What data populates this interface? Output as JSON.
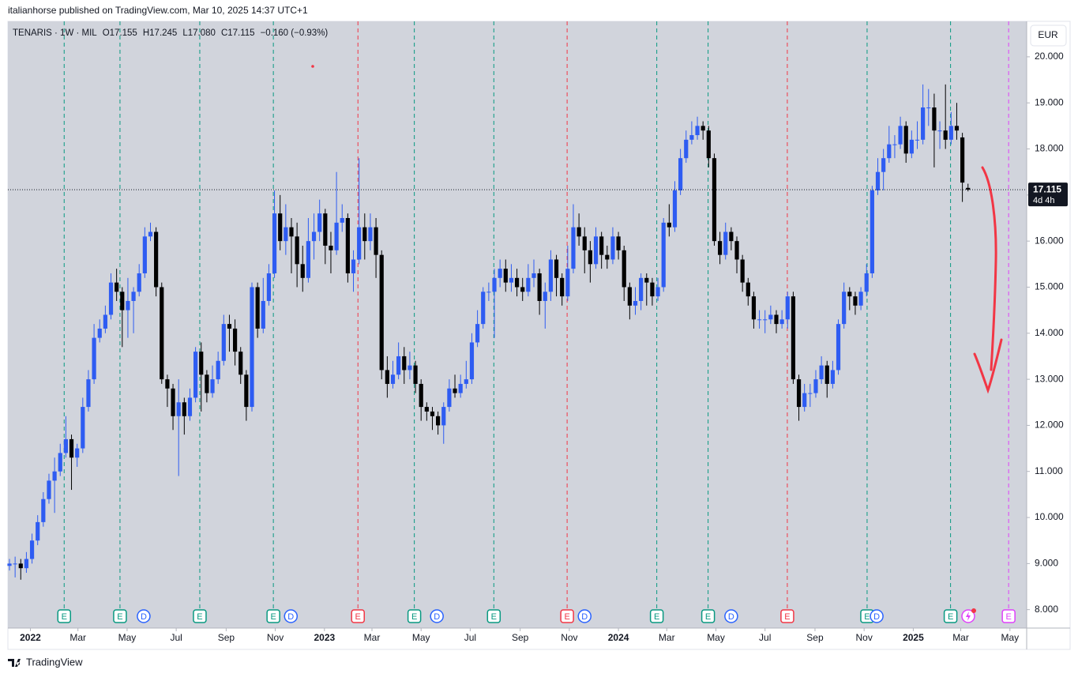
{
  "header": "italianhorse published on TradingView.com, Mar 10, 2025 14:37 UTC+1",
  "footer": "TradingView",
  "chart_data": {
    "type": "candlestick",
    "legend": {
      "symbol": "TENARIS · 1W · MIL",
      "items": [
        {
          "key": "O",
          "value": "17.155"
        },
        {
          "key": "H",
          "value": "17.245"
        },
        {
          "key": "L",
          "value": "17.080"
        },
        {
          "key": "C",
          "value": "17.115"
        }
      ],
      "change": "−0.160 (−0.93%)"
    },
    "currency": "EUR",
    "last_price_label": "17.115",
    "countdown": "4d 4h",
    "up_color": "#2e5cf2",
    "down_color": "#000000",
    "grid": false,
    "x": [
      0,
      1,
      2,
      3,
      4,
      5,
      6,
      7,
      8,
      9,
      10,
      11,
      12,
      13,
      14,
      15,
      16,
      17,
      18,
      19,
      20,
      21,
      22,
      23,
      24,
      25,
      26,
      27,
      28,
      29,
      30,
      31,
      32,
      33,
      34,
      35,
      36,
      37,
      38,
      39,
      40,
      41,
      42,
      43,
      44,
      45,
      46,
      47,
      48,
      49,
      50,
      51,
      52,
      53,
      54,
      55,
      56,
      57,
      58,
      59,
      60,
      61,
      62,
      63,
      64,
      65,
      66,
      67,
      68,
      69,
      70,
      71,
      72,
      73,
      74,
      75,
      76,
      77,
      78,
      79,
      80,
      81,
      82,
      83,
      84,
      85,
      86,
      87,
      88,
      89,
      90,
      91,
      92,
      93,
      94,
      95,
      96,
      97,
      98,
      99,
      100,
      101,
      102,
      103,
      104,
      105,
      106,
      107,
      108,
      109,
      110,
      111,
      112,
      113,
      114,
      115,
      116,
      117,
      118,
      119,
      120,
      121,
      122,
      123,
      124,
      125,
      126,
      127,
      128,
      129,
      130,
      131,
      132,
      133,
      134,
      135,
      136,
      137,
      138,
      139,
      140,
      141,
      142,
      143,
      144,
      145,
      146,
      147,
      148,
      149,
      150,
      151,
      152,
      153,
      154,
      155,
      156,
      157,
      158,
      159,
      160,
      161,
      162,
      163,
      164,
      165,
      166,
      167,
      168,
      169,
      170
    ],
    "open": [
      8.95,
      9.0,
      9.0,
      8.9,
      9.1,
      9.5,
      9.9,
      10.4,
      10.8,
      11.0,
      11.4,
      11.7,
      11.3,
      11.5,
      12.4,
      13.0,
      13.9,
      14.1,
      14.4,
      15.1,
      14.9,
      14.5,
      14.7,
      14.9,
      15.3,
      16.1,
      16.2,
      15.0,
      13.0,
      12.8,
      12.2,
      12.5,
      12.2,
      12.6,
      13.6,
      13.1,
      12.7,
      13.0,
      13.4,
      14.2,
      14.1,
      13.6,
      13.1,
      12.4,
      15.0,
      14.1,
      14.7,
      15.3,
      16.6,
      16.0,
      16.3,
      16.1,
      15.5,
      15.2,
      16.0,
      16.2,
      16.6,
      15.9,
      15.8,
      16.4,
      16.5,
      15.3,
      15.6,
      16.3,
      16.0,
      16.3,
      15.7,
      13.2,
      12.9,
      13.1,
      13.5,
      13.2,
      13.3,
      12.9,
      12.4,
      12.3,
      12.2,
      12.0,
      12.4,
      12.8,
      12.7,
      12.9,
      13.0,
      13.8,
      14.2,
      14.9,
      14.9,
      15.2,
      15.4,
      15.1,
      15.2,
      15.0,
      14.9,
      15.2,
      15.3,
      14.7,
      14.9,
      15.6,
      15.2,
      14.8,
      15.4,
      16.3,
      16.1,
      15.8,
      15.5,
      16.1,
      15.7,
      15.6,
      16.1,
      15.8,
      15.0,
      14.6,
      14.7,
      15.2,
      15.1,
      14.8,
      15.0,
      16.4,
      16.3,
      17.1,
      17.8,
      18.2,
      18.3,
      18.5,
      18.4,
      17.8,
      16.0,
      15.7,
      16.2,
      16.0,
      15.6,
      15.1,
      14.8,
      14.3,
      14.3,
      14.3,
      14.4,
      14.2,
      14.3,
      14.8,
      13.0,
      12.4,
      12.7,
      12.7,
      13.0,
      13.3,
      12.9,
      13.2,
      14.2,
      14.9,
      14.8,
      14.6,
      14.9,
      15.3,
      17.1,
      17.5,
      17.8,
      18.1,
      18.1,
      18.5,
      17.9,
      18.2,
      18.2,
      18.9,
      18.9,
      18.4,
      18.4,
      18.2,
      18.5,
      18.25,
      17.155
    ],
    "high": [
      9.1,
      9.15,
      9.1,
      9.25,
      9.65,
      10.05,
      10.55,
      10.95,
      11.3,
      11.6,
      12.2,
      11.8,
      11.6,
      12.6,
      13.2,
      14.2,
      14.3,
      14.6,
      15.3,
      15.4,
      15.0,
      15.2,
      15.0,
      15.5,
      16.3,
      16.4,
      16.3,
      15.1,
      13.1,
      12.9,
      13.0,
      12.6,
      12.8,
      13.7,
      13.8,
      13.2,
      13.3,
      13.6,
      14.4,
      14.4,
      14.3,
      13.7,
      13.2,
      15.1,
      15.1,
      15.2,
      15.5,
      17.1,
      17.0,
      16.8,
      16.5,
      16.4,
      15.9,
      16.5,
      16.6,
      16.9,
      16.7,
      16.2,
      17.5,
      16.8,
      16.6,
      15.8,
      17.8,
      16.6,
      16.6,
      16.5,
      15.8,
      13.5,
      13.4,
      13.8,
      13.7,
      13.6,
      13.4,
      13.0,
      12.5,
      12.4,
      12.3,
      12.5,
      13.0,
      13.1,
      13.1,
      13.4,
      14.0,
      14.5,
      15.0,
      15.1,
      15.4,
      15.6,
      15.6,
      15.5,
      15.4,
      15.2,
      15.5,
      15.6,
      15.4,
      15.1,
      15.8,
      15.7,
      15.3,
      15.9,
      16.8,
      16.6,
      16.3,
      16.0,
      16.3,
      16.2,
      15.9,
      16.3,
      16.2,
      15.9,
      15.1,
      15.0,
      15.3,
      15.3,
      15.2,
      15.2,
      16.5,
      16.8,
      17.3,
      18.0,
      18.4,
      18.6,
      18.7,
      18.6,
      18.5,
      17.9,
      16.2,
      16.4,
      16.3,
      16.1,
      15.7,
      15.2,
      14.9,
      14.5,
      14.5,
      14.6,
      14.5,
      14.5,
      14.9,
      14.9,
      13.1,
      12.9,
      12.9,
      13.2,
      13.5,
      13.4,
      13.4,
      14.3,
      15.1,
      15.0,
      14.9,
      15.0,
      15.5,
      17.2,
      17.8,
      18.0,
      18.5,
      18.3,
      18.7,
      18.6,
      18.4,
      18.6,
      19.4,
      19.3,
      19.2,
      18.6,
      19.4,
      18.8,
      19.0,
      18.35,
      17.245
    ],
    "low": [
      8.85,
      8.7,
      8.65,
      8.8,
      9.0,
      9.4,
      9.8,
      10.3,
      10.1,
      10.9,
      11.3,
      10.6,
      11.1,
      11.4,
      12.3,
      12.9,
      13.8,
      14.0,
      14.3,
      14.7,
      13.7,
      13.9,
      14.0,
      14.8,
      15.2,
      16.0,
      14.8,
      12.9,
      12.4,
      11.9,
      10.9,
      11.8,
      12.1,
      12.5,
      12.3,
      12.5,
      12.6,
      12.9,
      13.3,
      13.6,
      13.3,
      12.9,
      12.1,
      12.3,
      13.9,
      14.0,
      14.6,
      15.2,
      15.8,
      15.7,
      15.3,
      15.0,
      14.9,
      15.1,
      15.6,
      16.0,
      15.5,
      15.3,
      15.7,
      16.2,
      15.1,
      14.9,
      15.5,
      15.6,
      15.8,
      15.2,
      13.0,
      12.6,
      12.8,
      13.0,
      12.9,
      13.0,
      12.7,
      12.1,
      12.1,
      11.9,
      11.8,
      11.6,
      12.3,
      12.6,
      12.6,
      12.8,
      12.9,
      13.7,
      14.1,
      14.7,
      13.9,
      15.0,
      14.9,
      14.9,
      14.8,
      14.7,
      14.8,
      15.0,
      14.4,
      14.1,
      14.7,
      14.8,
      14.6,
      14.7,
      15.3,
      15.9,
      15.3,
      15.1,
      15.4,
      15.4,
      15.4,
      15.5,
      15.6,
      14.7,
      14.3,
      14.4,
      14.5,
      14.6,
      14.6,
      14.7,
      14.9,
      16.1,
      16.2,
      17.0,
      17.7,
      18.1,
      18.2,
      18.2,
      17.6,
      15.9,
      15.5,
      15.6,
      15.8,
      15.3,
      14.9,
      14.6,
      14.1,
      14.1,
      14.0,
      14.2,
      14.0,
      14.1,
      14.1,
      12.9,
      12.1,
      12.3,
      12.4,
      12.6,
      12.9,
      12.6,
      12.8,
      13.1,
      14.1,
      14.5,
      14.4,
      14.5,
      14.8,
      15.2,
      17.0,
      17.1,
      17.7,
      17.8,
      18.0,
      17.7,
      17.8,
      18.0,
      18.1,
      18.5,
      17.6,
      18.0,
      18.0,
      18.1,
      18.2,
      16.85,
      17.08
    ],
    "close": [
      9.0,
      9.0,
      8.9,
      9.1,
      9.5,
      9.9,
      10.4,
      10.8,
      11.0,
      11.4,
      11.7,
      11.3,
      11.5,
      12.4,
      13.0,
      13.9,
      14.1,
      14.4,
      15.1,
      14.9,
      14.5,
      14.7,
      14.9,
      15.3,
      16.1,
      16.2,
      15.0,
      13.0,
      12.8,
      12.2,
      12.5,
      12.2,
      12.6,
      13.6,
      13.1,
      12.7,
      13.0,
      13.4,
      14.2,
      14.1,
      13.6,
      13.1,
      12.4,
      15.0,
      14.1,
      14.7,
      15.3,
      16.6,
      16.0,
      16.3,
      16.1,
      15.5,
      15.2,
      16.0,
      16.2,
      16.6,
      15.9,
      15.8,
      16.4,
      16.5,
      15.3,
      15.6,
      16.3,
      16.0,
      16.3,
      15.7,
      13.2,
      12.9,
      13.1,
      13.5,
      13.2,
      13.3,
      12.9,
      12.4,
      12.3,
      12.2,
      12.0,
      12.4,
      12.8,
      12.7,
      12.9,
      13.0,
      13.8,
      14.2,
      14.9,
      14.9,
      15.2,
      15.4,
      15.1,
      15.2,
      15.0,
      14.9,
      15.2,
      15.3,
      14.7,
      14.9,
      15.6,
      15.2,
      14.8,
      15.4,
      16.3,
      16.1,
      15.8,
      15.5,
      16.1,
      15.7,
      15.6,
      16.1,
      15.8,
      15.0,
      14.6,
      14.7,
      15.2,
      15.1,
      14.8,
      15.0,
      16.4,
      16.3,
      17.1,
      17.8,
      18.2,
      18.3,
      18.5,
      18.4,
      17.8,
      16.0,
      15.7,
      16.2,
      16.0,
      15.6,
      15.1,
      14.8,
      14.3,
      14.3,
      14.3,
      14.4,
      14.2,
      14.3,
      14.8,
      13.0,
      12.4,
      12.7,
      12.7,
      13.0,
      13.3,
      12.9,
      13.2,
      14.2,
      14.9,
      14.8,
      14.6,
      14.9,
      15.3,
      17.1,
      17.5,
      17.8,
      18.1,
      18.1,
      18.5,
      17.9,
      18.2,
      18.2,
      18.9,
      18.9,
      18.4,
      18.4,
      18.2,
      18.5,
      18.4,
      17.27,
      17.115
    ],
    "xlim": [
      -0.28,
      180.4
    ],
    "xticks": [
      {
        "value": 3.71,
        "label": "2022"
      },
      {
        "value": 12.14,
        "label": "Mar"
      },
      {
        "value": 20.86,
        "label": "May"
      },
      {
        "value": 29.57,
        "label": "Jul"
      },
      {
        "value": 38.43,
        "label": "Sep"
      },
      {
        "value": 47.14,
        "label": "Nov"
      },
      {
        "value": 55.86,
        "label": "2023"
      },
      {
        "value": 64.29,
        "label": "Mar"
      },
      {
        "value": 73,
        "label": "May"
      },
      {
        "value": 81.71,
        "label": "Jul"
      },
      {
        "value": 90.57,
        "label": "Sep"
      },
      {
        "value": 99.29,
        "label": "Nov"
      },
      {
        "value": 108,
        "label": "2024"
      },
      {
        "value": 116.57,
        "label": "Mar"
      },
      {
        "value": 125.29,
        "label": "May"
      },
      {
        "value": 134,
        "label": "Jul"
      },
      {
        "value": 142.86,
        "label": "Sep"
      },
      {
        "value": 151.57,
        "label": "Nov"
      },
      {
        "value": 160.29,
        "label": "2025"
      },
      {
        "value": 168.71,
        "label": "Mar"
      },
      {
        "value": 177.43,
        "label": "May"
      }
    ],
    "ylim": [
      7.6,
      20.77
    ],
    "yticks": [
      {
        "value": 8,
        "label": "8.000"
      },
      {
        "value": 9,
        "label": "9.000"
      },
      {
        "value": 10,
        "label": "10.000"
      },
      {
        "value": 11,
        "label": "11.000"
      },
      {
        "value": 12,
        "label": "12.000"
      },
      {
        "value": 13,
        "label": "13.000"
      },
      {
        "value": 14,
        "label": "14.000"
      },
      {
        "value": 15,
        "label": "15.000"
      },
      {
        "value": 16,
        "label": "16.000"
      },
      {
        "value": 17,
        "label": "17.000"
      },
      {
        "value": 18,
        "label": "18.000"
      },
      {
        "value": 19,
        "label": "19.000"
      },
      {
        "value": 20,
        "label": "20.000"
      }
    ],
    "earnings": [
      {
        "x": 9.7,
        "label": "E",
        "color": "#089981"
      },
      {
        "x": 19.6,
        "label": "E",
        "color": "#089981"
      },
      {
        "x": 33.75,
        "label": "E",
        "color": "#089981"
      },
      {
        "x": 46.8,
        "label": "E",
        "color": "#089981"
      },
      {
        "x": 61.8,
        "label": "E",
        "color": "#f23645"
      },
      {
        "x": 71.8,
        "label": "E",
        "color": "#089981"
      },
      {
        "x": 85.9,
        "label": "E",
        "color": "#089981"
      },
      {
        "x": 98.9,
        "label": "E",
        "color": "#f23645"
      },
      {
        "x": 114.8,
        "label": "E",
        "color": "#089981"
      },
      {
        "x": 123.9,
        "label": "E",
        "color": "#089981"
      },
      {
        "x": 137.95,
        "label": "E",
        "color": "#f23645"
      },
      {
        "x": 152.1,
        "label": "E",
        "color": "#089981"
      },
      {
        "x": 166.9,
        "label": "E",
        "color": "#089981"
      },
      {
        "x": 177.2,
        "label": "E",
        "color": "#e040fb"
      }
    ],
    "dividends": [
      {
        "x": 23.8,
        "label": "D",
        "color": "#2962ff"
      },
      {
        "x": 49.9,
        "label": "D",
        "color": "#2962ff"
      },
      {
        "x": 75.8,
        "label": "D",
        "color": "#2962ff"
      },
      {
        "x": 102,
        "label": "D",
        "color": "#2962ff"
      },
      {
        "x": 128,
        "label": "D",
        "color": "#2962ff"
      },
      {
        "x": 153.8,
        "label": "D",
        "color": "#2962ff"
      }
    ]
  }
}
